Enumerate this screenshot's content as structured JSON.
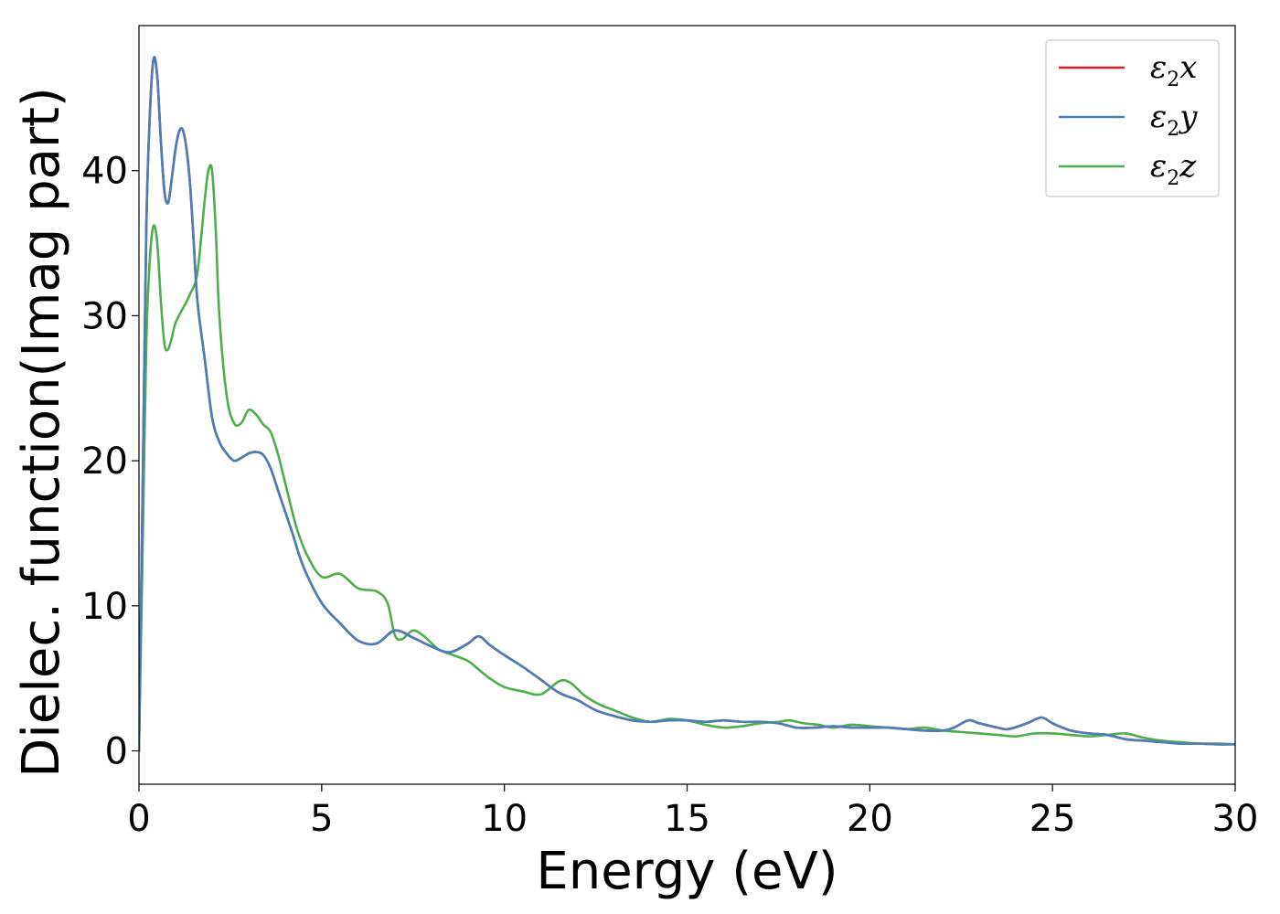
{
  "chart_data": {
    "type": "line",
    "title": "",
    "xlabel": "Energy (eV)",
    "ylabel": "Dielec. function(Imag part)",
    "xlim": [
      0,
      30
    ],
    "ylim": [
      -2.3,
      50
    ],
    "xticks": [
      0,
      5,
      10,
      15,
      20,
      25,
      30
    ],
    "yticks": [
      0,
      10,
      20,
      30,
      40
    ],
    "grid": false,
    "legend_position": "top-right",
    "series": [
      {
        "name": "ε2x",
        "legend_base": "ε",
        "legend_sub": "2",
        "legend_tail": "x",
        "color": "#e41a1c",
        "x": [
          0,
          0.1,
          0.2,
          0.3,
          0.4,
          0.5,
          0.6,
          0.7,
          0.8,
          0.9,
          1.0,
          1.1,
          1.2,
          1.3,
          1.4,
          1.5,
          1.6,
          1.8,
          2.0,
          2.2,
          2.4,
          2.6,
          2.8,
          3.0,
          3.2,
          3.4,
          3.6,
          3.8,
          4.0,
          4.2,
          4.5,
          5.0,
          5.5,
          6.0,
          6.5,
          7.0,
          7.5,
          8.0,
          8.5,
          9.0,
          9.3,
          9.6,
          10.0,
          10.5,
          11.0,
          11.5,
          12.0,
          12.5,
          13.0,
          13.5,
          14.0,
          14.5,
          15.0,
          15.5,
          16.0,
          16.5,
          17.0,
          17.5,
          18.0,
          18.5,
          19.0,
          19.5,
          20.0,
          20.5,
          21.0,
          21.5,
          22.0,
          22.3,
          22.7,
          23.0,
          23.5,
          23.8,
          24.3,
          24.7,
          25.0,
          25.5,
          26.0,
          26.5,
          27.0,
          27.5,
          28.0,
          28.5,
          29.0,
          29.5,
          30.0
        ],
        "y": [
          0,
          18,
          36,
          44,
          47.7,
          46.5,
          42,
          38.5,
          37.8,
          39.5,
          41.5,
          42.7,
          42.8,
          41.5,
          39,
          35,
          31,
          27,
          23,
          21.3,
          20.5,
          20.0,
          20.2,
          20.5,
          20.6,
          20.4,
          19.5,
          18,
          16.5,
          15,
          12.7,
          10.2,
          8.8,
          7.6,
          7.4,
          8.3,
          7.8,
          7.2,
          6.8,
          7.4,
          7.9,
          7.3,
          6.6,
          5.8,
          4.9,
          4.0,
          3.5,
          2.8,
          2.4,
          2.1,
          2.0,
          2.1,
          2.1,
          2.0,
          2.1,
          2.0,
          2.0,
          1.9,
          1.6,
          1.6,
          1.7,
          1.6,
          1.6,
          1.6,
          1.5,
          1.4,
          1.4,
          1.6,
          2.1,
          1.9,
          1.6,
          1.5,
          1.9,
          2.3,
          1.9,
          1.4,
          1.2,
          1.1,
          0.8,
          0.7,
          0.6,
          0.5,
          0.5,
          0.45,
          0.45
        ]
      },
      {
        "name": "ε2y",
        "legend_base": "ε",
        "legend_sub": "2",
        "legend_tail": "y",
        "color": "#4a7ebb",
        "x": [
          0,
          0.1,
          0.2,
          0.3,
          0.4,
          0.5,
          0.6,
          0.7,
          0.8,
          0.9,
          1.0,
          1.1,
          1.2,
          1.3,
          1.4,
          1.5,
          1.6,
          1.8,
          2.0,
          2.2,
          2.4,
          2.6,
          2.8,
          3.0,
          3.2,
          3.4,
          3.6,
          3.8,
          4.0,
          4.2,
          4.5,
          5.0,
          5.5,
          6.0,
          6.5,
          7.0,
          7.5,
          8.0,
          8.5,
          9.0,
          9.3,
          9.6,
          10.0,
          10.5,
          11.0,
          11.5,
          12.0,
          12.5,
          13.0,
          13.5,
          14.0,
          14.5,
          15.0,
          15.5,
          16.0,
          16.5,
          17.0,
          17.5,
          18.0,
          18.5,
          19.0,
          19.5,
          20.0,
          20.5,
          21.0,
          21.5,
          22.0,
          22.3,
          22.7,
          23.0,
          23.5,
          23.8,
          24.3,
          24.7,
          25.0,
          25.5,
          26.0,
          26.5,
          27.0,
          27.5,
          28.0,
          28.5,
          29.0,
          29.5,
          30.0
        ],
        "y": [
          0,
          18,
          36,
          44,
          47.7,
          46.5,
          42,
          38.5,
          37.8,
          39.5,
          41.5,
          42.7,
          42.8,
          41.5,
          39,
          35,
          31,
          27,
          23,
          21.3,
          20.5,
          20.0,
          20.2,
          20.5,
          20.6,
          20.4,
          19.5,
          18,
          16.5,
          15,
          12.7,
          10.2,
          8.8,
          7.6,
          7.4,
          8.3,
          7.8,
          7.2,
          6.8,
          7.4,
          7.9,
          7.3,
          6.6,
          5.8,
          4.9,
          4.0,
          3.5,
          2.8,
          2.4,
          2.1,
          2.0,
          2.1,
          2.1,
          2.0,
          2.1,
          2.0,
          2.0,
          1.9,
          1.6,
          1.6,
          1.7,
          1.6,
          1.6,
          1.6,
          1.5,
          1.4,
          1.4,
          1.6,
          2.1,
          1.9,
          1.6,
          1.5,
          1.9,
          2.3,
          1.9,
          1.4,
          1.2,
          1.1,
          0.8,
          0.7,
          0.6,
          0.5,
          0.5,
          0.45,
          0.45
        ]
      },
      {
        "name": "ε2z",
        "legend_base": "ε",
        "legend_sub": "2",
        "legend_tail": "z",
        "color": "#4daf4a",
        "x": [
          0,
          0.1,
          0.2,
          0.3,
          0.4,
          0.5,
          0.6,
          0.7,
          0.8,
          0.9,
          1.0,
          1.2,
          1.4,
          1.6,
          1.8,
          1.9,
          2.0,
          2.1,
          2.2,
          2.4,
          2.6,
          2.8,
          3.0,
          3.2,
          3.4,
          3.6,
          3.8,
          4.0,
          4.3,
          4.6,
          5.0,
          5.5,
          6.0,
          6.5,
          6.8,
          7.0,
          7.2,
          7.5,
          7.8,
          8.2,
          8.6,
          9.0,
          9.3,
          9.6,
          10.0,
          10.5,
          11.0,
          11.5,
          11.8,
          12.2,
          12.6,
          13.0,
          13.5,
          14.0,
          14.5,
          15.0,
          15.5,
          16.0,
          16.5,
          17.0,
          17.5,
          17.8,
          18.2,
          18.6,
          19.0,
          19.5,
          20.0,
          20.5,
          21.0,
          21.5,
          22.0,
          22.5,
          23.0,
          23.5,
          24.0,
          24.5,
          25.0,
          25.5,
          26.0,
          26.5,
          27.0,
          27.5,
          28.0,
          28.5,
          29.0,
          29.5,
          30.0
        ],
        "y": [
          0,
          14,
          28,
          34,
          36.2,
          35,
          31,
          28,
          27.7,
          28.5,
          29.5,
          30.5,
          31.5,
          33,
          38,
          40,
          40,
          36,
          30,
          24.5,
          22.6,
          22.6,
          23.5,
          23.2,
          22.5,
          22,
          20.5,
          18.5,
          15.5,
          13.5,
          12,
          12.2,
          11.2,
          11.0,
          10.2,
          8.0,
          7.7,
          8.3,
          7.9,
          7.0,
          6.6,
          6.2,
          5.6,
          5.0,
          4.4,
          4.1,
          3.9,
          4.8,
          4.7,
          3.8,
          3.2,
          2.8,
          2.3,
          2.0,
          2.2,
          2.1,
          1.8,
          1.6,
          1.7,
          1.9,
          2.0,
          2.1,
          1.9,
          1.8,
          1.6,
          1.8,
          1.7,
          1.6,
          1.5,
          1.6,
          1.4,
          1.3,
          1.2,
          1.1,
          1.0,
          1.2,
          1.2,
          1.1,
          1.0,
          1.1,
          1.2,
          0.9,
          0.7,
          0.6,
          0.5,
          0.5,
          0.45
        ]
      }
    ]
  }
}
